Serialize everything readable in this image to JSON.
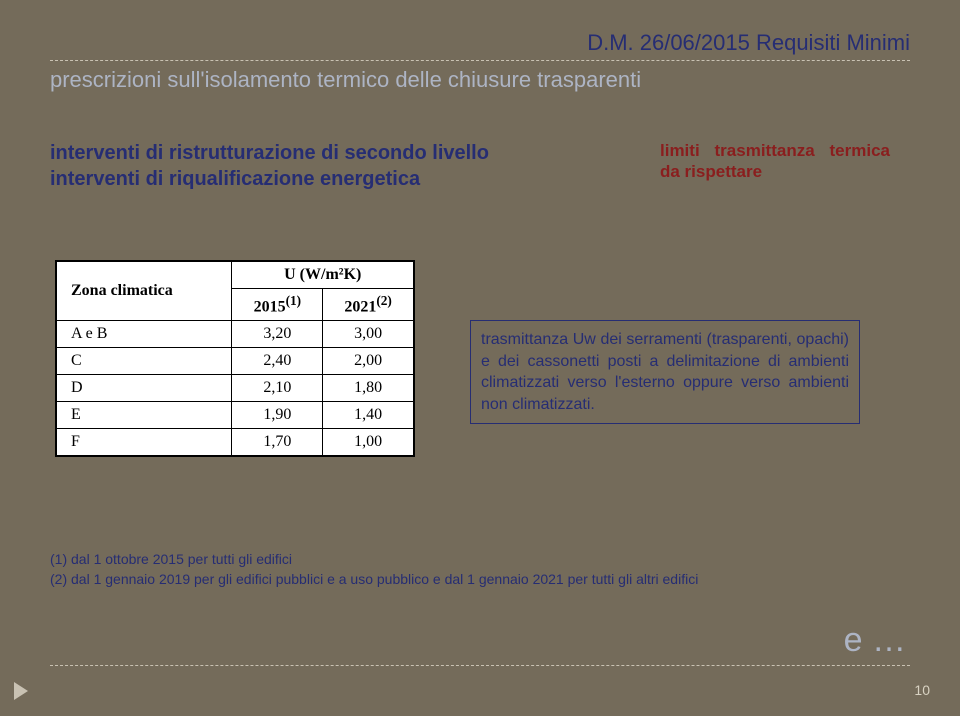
{
  "header": {
    "title": "D.M. 26/06/2015 Requisiti Minimi",
    "subtitle": "prescrizioni sull'isolamento termico delle chiusure trasparenti"
  },
  "body": {
    "line1": "interventi di ristrutturazione di secondo livello",
    "line2": "interventi di riqualificazione energetica",
    "limits": "limiti trasmittanza termica da rispettare"
  },
  "table": {
    "col_zona": "Zona climatica",
    "col_u": "U (W/m²K)",
    "col_y1": "2015",
    "sup1": "(1)",
    "col_y2": "2021",
    "sup2": "(2)",
    "rows": [
      {
        "zona": "A e B",
        "y1": "3,20",
        "y2": "3,00"
      },
      {
        "zona": "C",
        "y1": "2,40",
        "y2": "2,00"
      },
      {
        "zona": "D",
        "y1": "2,10",
        "y2": "1,80"
      },
      {
        "zona": "E",
        "y1": "1,90",
        "y2": "1,40"
      },
      {
        "zona": "F",
        "y1": "1,70",
        "y2": "1,00"
      }
    ]
  },
  "descbox": "trasmittanza Uw dei serramenti (trasparenti, opachi) e dei cassonetti posti a delimitazione di ambienti climatizzati verso l'esterno oppure verso ambienti non climatizzati.",
  "notes": {
    "n1": "(1) dal 1 ottobre 2015 per tutti gli edifici",
    "n2": "(2) dal 1 gennaio 2019 per gli edifici pubblici e a uso pubblico e dal 1 gennaio 2021 per tutti gli altri edifici"
  },
  "footer": {
    "e": "e …",
    "page": "10"
  }
}
